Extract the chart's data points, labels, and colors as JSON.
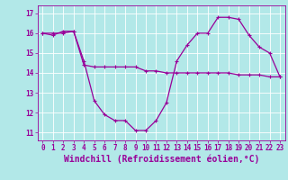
{
  "background_color": "#b2e8e8",
  "grid_color": "#ffffff",
  "line_color": "#990099",
  "xlabel": "Windchill (Refroidissement éolien,°C)",
  "xlabel_fontsize": 7,
  "ylabel_values": [
    11,
    12,
    13,
    14,
    15,
    16,
    17
  ],
  "xtick_labels": [
    "0",
    "1",
    "2",
    "3",
    "4",
    "5",
    "6",
    "7",
    "8",
    "9",
    "10",
    "11",
    "12",
    "13",
    "14",
    "15",
    "16",
    "17",
    "18",
    "19",
    "20",
    "21",
    "22",
    "23"
  ],
  "ylim": [
    10.6,
    17.4
  ],
  "xlim": [
    -0.5,
    23.5
  ],
  "series1_x": [
    0,
    1,
    2,
    3,
    4,
    5,
    6,
    7,
    8,
    9,
    10,
    11,
    12,
    13,
    14,
    15,
    16,
    17,
    18,
    19,
    20,
    21,
    22,
    23
  ],
  "series1_y": [
    16.0,
    15.9,
    16.1,
    16.1,
    14.6,
    12.6,
    11.9,
    11.6,
    11.6,
    11.1,
    11.1,
    11.6,
    12.5,
    14.6,
    15.4,
    16.0,
    16.0,
    16.8,
    16.8,
    16.7,
    15.9,
    15.3,
    15.0,
    13.8
  ],
  "series2_x": [
    0,
    1,
    2,
    3,
    4,
    5,
    6,
    7,
    8,
    9,
    10,
    11,
    12,
    13,
    14,
    15,
    16,
    17,
    18,
    19,
    20,
    21,
    22,
    23
  ],
  "series2_y": [
    16.0,
    16.0,
    16.0,
    16.1,
    14.4,
    14.3,
    14.3,
    14.3,
    14.3,
    14.3,
    14.1,
    14.1,
    14.0,
    14.0,
    14.0,
    14.0,
    14.0,
    14.0,
    14.0,
    13.9,
    13.9,
    13.9,
    13.8,
    13.8
  ],
  "marker": "+",
  "markersize": 3,
  "linewidth": 0.9,
  "tick_fontsize": 5.5,
  "ytick_fontsize": 5.5
}
